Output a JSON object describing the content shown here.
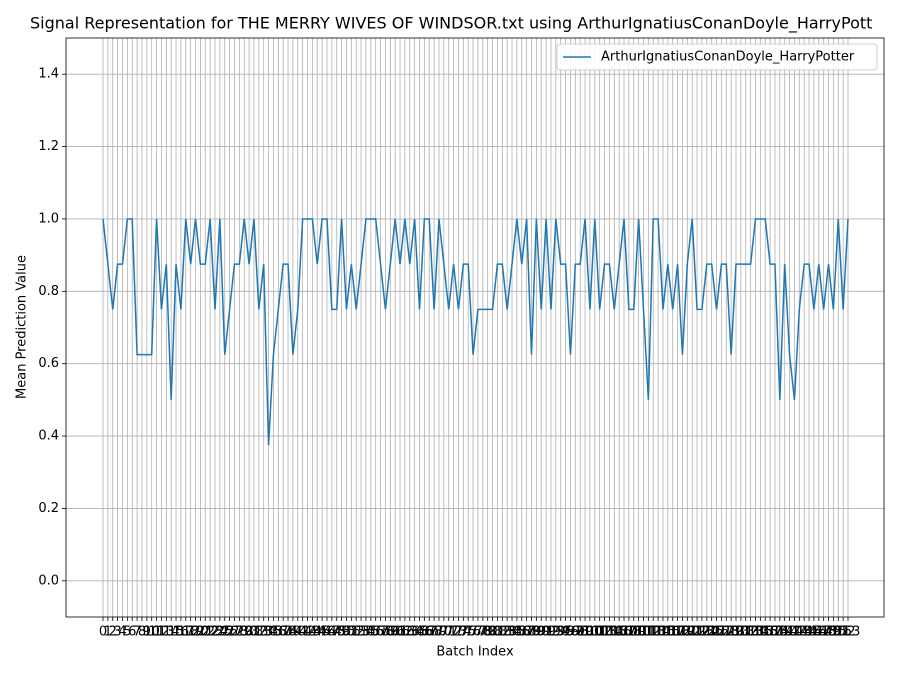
{
  "chart_data": {
    "type": "line",
    "title": "Signal Representation for THE MERRY WIVES OF WINDSOR.txt using ArthurIgnatiusConanDoyle_HarryPott",
    "x_label": "Batch Index",
    "y_label": "Mean Prediction Value",
    "categories": [
      "0",
      "1",
      "2",
      "3",
      "4",
      "5",
      "6",
      "7",
      "8",
      "9",
      "10",
      "11",
      "12",
      "13",
      "14",
      "15",
      "16",
      "17",
      "18",
      "19",
      "20",
      "21",
      "22",
      "23",
      "24",
      "25",
      "26",
      "27",
      "28",
      "29",
      "30",
      "31",
      "32",
      "33",
      "34",
      "35",
      "36",
      "37",
      "38",
      "39",
      "40",
      "41",
      "42",
      "43",
      "44",
      "45",
      "46",
      "47",
      "48",
      "49",
      "50",
      "51",
      "52",
      "53",
      "54",
      "55",
      "56",
      "57",
      "58",
      "59",
      "60",
      "61",
      "62",
      "63",
      "64",
      "65",
      "66",
      "67",
      "68",
      "69",
      "70",
      "71",
      "72",
      "73",
      "74",
      "75",
      "76",
      "77",
      "78",
      "79",
      "80",
      "81",
      "82",
      "83",
      "84",
      "85",
      "86",
      "87",
      "88",
      "89",
      "90",
      "91",
      "92",
      "93",
      "94",
      "95",
      "96",
      "97",
      "98",
      "99",
      "100",
      "101",
      "102",
      "103",
      "104",
      "105",
      "106",
      "107",
      "108",
      "109",
      "110",
      "111",
      "112",
      "113",
      "114",
      "115",
      "116",
      "117",
      "118",
      "119",
      "120",
      "121",
      "122",
      "123",
      "124",
      "125",
      "126",
      "127",
      "128",
      "129",
      "130",
      "131",
      "132",
      "133",
      "134",
      "135",
      "136",
      "137",
      "138",
      "139",
      "140",
      "141",
      "142",
      "143",
      "144",
      "145",
      "146",
      "147",
      "148",
      "149",
      "150",
      "151",
      "152",
      "153"
    ],
    "series": [
      {
        "name": "ArthurIgnatiusConanDoyle_HarryPotter",
        "color": "#1f77b4",
        "values": [
          1.0,
          0.875,
          0.75,
          0.875,
          0.875,
          1.0,
          1.0,
          0.625,
          0.625,
          0.625,
          0.625,
          1.0,
          0.75,
          0.875,
          0.5,
          0.875,
          0.75,
          1.0,
          0.875,
          1.0,
          0.875,
          0.875,
          1.0,
          0.75,
          1.0,
          0.625,
          0.75,
          0.875,
          0.875,
          1.0,
          0.875,
          1.0,
          0.75,
          0.875,
          0.375,
          0.625,
          0.75,
          0.875,
          0.875,
          0.625,
          0.75,
          1.0,
          1.0,
          1.0,
          0.875,
          1.0,
          1.0,
          0.75,
          0.75,
          1.0,
          0.75,
          0.875,
          0.75,
          0.875,
          1.0,
          1.0,
          1.0,
          0.875,
          0.75,
          0.875,
          1.0,
          0.875,
          1.0,
          0.875,
          1.0,
          0.75,
          1.0,
          1.0,
          0.75,
          1.0,
          0.875,
          0.75,
          0.875,
          0.75,
          0.875,
          0.875,
          0.625,
          0.75,
          0.75,
          0.75,
          0.75,
          0.875,
          0.875,
          0.75,
          0.875,
          1.0,
          0.875,
          1.0,
          0.625,
          1.0,
          0.75,
          1.0,
          0.75,
          1.0,
          0.875,
          0.875,
          0.625,
          0.875,
          0.875,
          1.0,
          0.75,
          1.0,
          0.75,
          0.875,
          0.875,
          0.75,
          0.875,
          1.0,
          0.75,
          0.75,
          1.0,
          0.75,
          0.5,
          1.0,
          1.0,
          0.75,
          0.875,
          0.75,
          0.875,
          0.625,
          0.875,
          1.0,
          0.75,
          0.75,
          0.875,
          0.875,
          0.75,
          0.875,
          0.875,
          0.625,
          0.875,
          0.875,
          0.875,
          0.875,
          1.0,
          1.0,
          1.0,
          0.875,
          0.875,
          0.5,
          0.875,
          0.625,
          0.5,
          0.75,
          0.875,
          0.875,
          0.75,
          0.875,
          0.75,
          0.875,
          0.75,
          1.0,
          0.75,
          1.0
        ]
      }
    ],
    "ylim": [
      -0.1,
      1.5
    ],
    "yticks": [
      {
        "value": 0,
        "label": "0.0"
      },
      0.2,
      0.4,
      0.6,
      0.8,
      {
        "value": 1,
        "label": "1.0"
      },
      1.2,
      1.4
    ],
    "grid": true,
    "legend": "upper right"
  }
}
